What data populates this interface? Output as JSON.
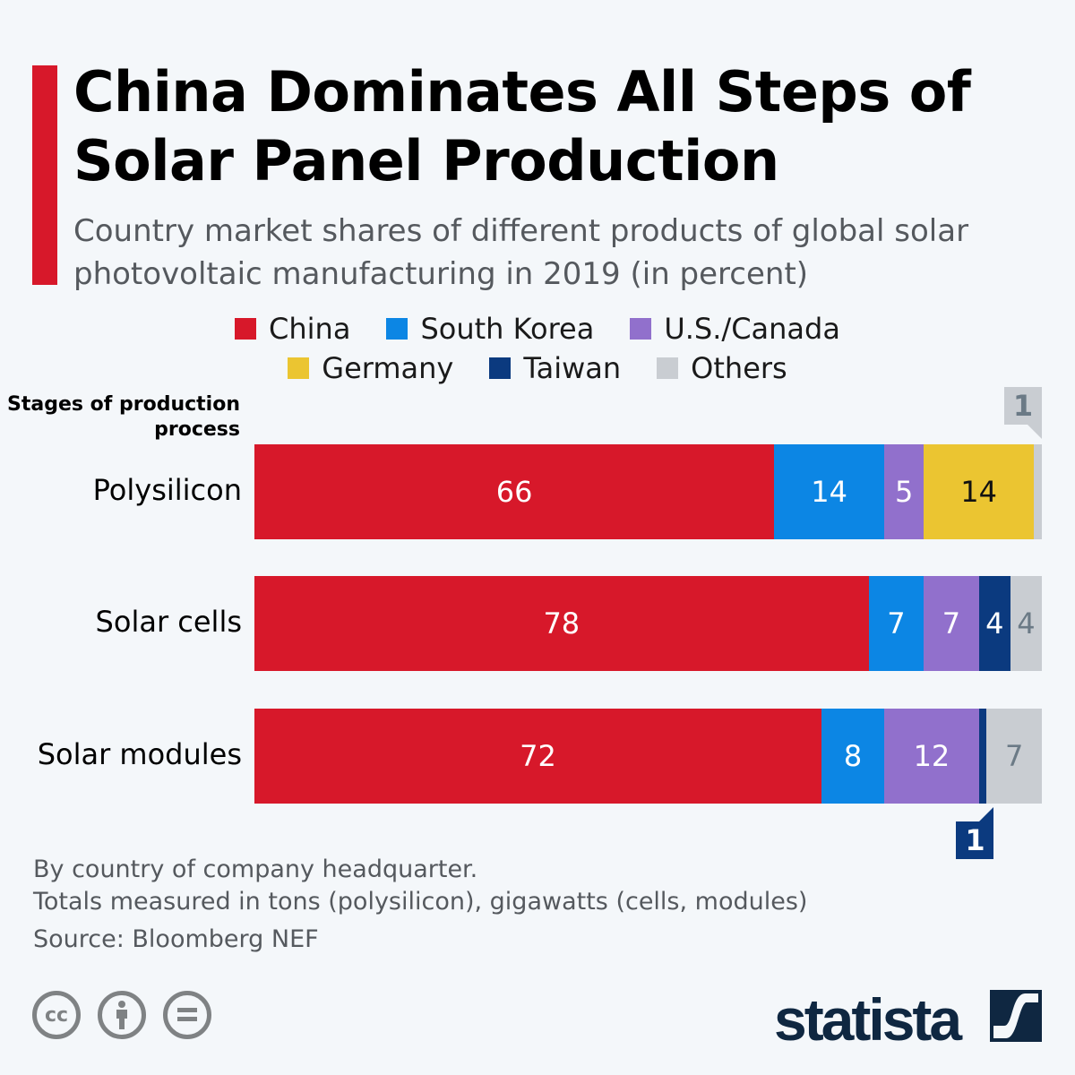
{
  "title": "China Dominates All Steps of Solar Panel Production",
  "subtitle": "Country market shares of different products of global solar photovoltaic manufacturing in 2019 (in percent)",
  "chart_data": {
    "type": "bar",
    "orientation": "horizontal",
    "stacked": true,
    "y_axis_title": "Stages of production process",
    "categories": [
      "Polysilicon",
      "Solar cells",
      "Solar modules"
    ],
    "xlim": [
      0,
      100
    ],
    "grid": false,
    "legend_placement": "top",
    "series": [
      {
        "name": "China",
        "color": "#d7182a",
        "label_color": "#ffffff",
        "values": [
          66,
          78,
          72
        ]
      },
      {
        "name": "South Korea",
        "color": "#0c86e4",
        "label_color": "#ffffff",
        "values": [
          14,
          7,
          8
        ]
      },
      {
        "name": "U.S./Canada",
        "color": "#9170cc",
        "label_color": "#ffffff",
        "values": [
          5,
          7,
          12
        ]
      },
      {
        "name": "Germany",
        "color": "#ebc531",
        "label_color": "#111111",
        "values": [
          14,
          0,
          0
        ]
      },
      {
        "name": "Taiwan",
        "color": "#0b3a7f",
        "label_color": "#ffffff",
        "values": [
          0,
          4,
          1
        ]
      },
      {
        "name": "Others",
        "color": "#c9cdd2",
        "label_color": "#6b7a86",
        "values": [
          1,
          4,
          7
        ]
      }
    ]
  },
  "notes": [
    "By country of company headquarter.",
    "Totals measured in tons (polysilicon), gigawatts (cells, modules)",
    "Source: Bloomberg NEF"
  ],
  "license_icons": [
    "cc-icon",
    "by-icon",
    "nd-icon"
  ],
  "logo": "statista"
}
